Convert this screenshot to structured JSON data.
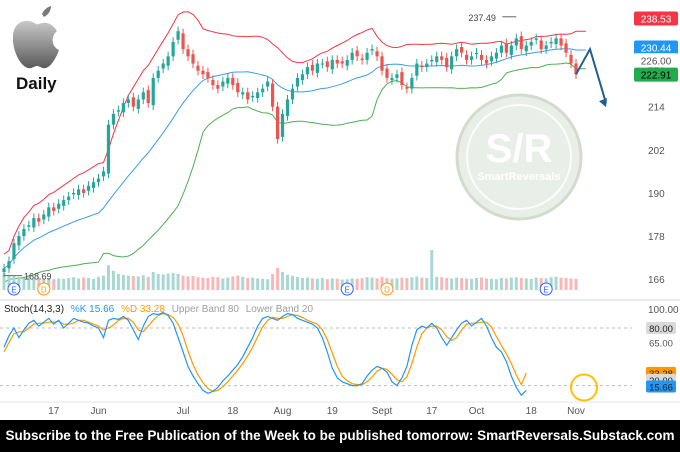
{
  "ticker_label": "Daily",
  "footer_text": "Subscribe to the Free Publication of the Week to be published tomorrow: SmartReversals.Substack.com",
  "watermark": {
    "big": "S/R",
    "small": "SmartReversals"
  },
  "colors": {
    "up": "#26a69a",
    "down": "#ef5350",
    "upper_band": "#f23645",
    "mid_band": "#3a9fe8",
    "lower_band": "#4caf50",
    "k_line": "#2196f3",
    "d_line": "#ff9800",
    "arrow": "#1f5f8f",
    "circle": "#ffc107"
  },
  "stoch_legend": {
    "name": "Stoch(14,3,3)",
    "k": "%K 15.66",
    "d": "%D 33.28",
    "ub": "Upper Band 80",
    "lb": "Lower Band 20"
  },
  "annotations": {
    "high": "237.49",
    "low": "168.69"
  },
  "price_tags": [
    {
      "text": "238.53",
      "bg": "#f23645",
      "fg": "#ffffff",
      "y": 238.53
    },
    {
      "text": "230.44",
      "bg": "#2196f3",
      "fg": "#ffffff",
      "y": 230.44
    },
    {
      "text": "226.00",
      "bg": "#ffffff",
      "fg": "#555555",
      "y": 226.9
    },
    {
      "text": "222.91",
      "bg": "#22ab4a",
      "fg": "#000000",
      "y": 222.91
    }
  ],
  "stoch_tags": [
    {
      "text": "80.00",
      "bg": "#d9d9d9",
      "fg": "#222222",
      "y": 80
    },
    {
      "text": "65.00",
      "bg": "#ffffff",
      "fg": "#555555",
      "y": 65
    },
    {
      "text": "33.28",
      "bg": "#ff9800",
      "fg": "#222222",
      "y": 33.28
    },
    {
      "text": "20.00",
      "bg": "#d9d9d9",
      "fg": "#222222",
      "y": 26
    },
    {
      "text": "15.66",
      "bg": "#2196f3",
      "fg": "#222222",
      "y": 19
    }
  ],
  "chart_data": {
    "type": "candlestick",
    "price_axis": {
      "ylim": [
        163,
        242
      ],
      "ticks": [
        166,
        178,
        190,
        202,
        214,
        226
      ]
    },
    "stoch_axis": {
      "ylim": [
        5,
        105
      ],
      "ticks": [
        100
      ]
    },
    "x_axis": {
      "ticks": [
        {
          "label": "17",
          "i": 10
        },
        {
          "label": "Jun",
          "i": 19
        },
        {
          "label": "Jul",
          "i": 36
        },
        {
          "label": "18",
          "i": 46
        },
        {
          "label": "Aug",
          "i": 56
        },
        {
          "label": "19",
          "i": 66
        },
        {
          "label": "Sept",
          "i": 76
        },
        {
          "label": "17",
          "i": 86
        },
        {
          "label": "Oct",
          "i": 95
        },
        {
          "label": "18",
          "i": 106
        },
        {
          "label": "Nov",
          "i": 115
        }
      ]
    },
    "closes": [
      169,
      171,
      176,
      178,
      180,
      181,
      183,
      182,
      184,
      186,
      185,
      187,
      188,
      189,
      190,
      191,
      190,
      192,
      193,
      194,
      196,
      209,
      212,
      213,
      215,
      216,
      214,
      216,
      218,
      215,
      222,
      224,
      226,
      228,
      232,
      235,
      230,
      228,
      226,
      224,
      223,
      222,
      220,
      219,
      221,
      222,
      220,
      218,
      218,
      216,
      217,
      218,
      219,
      221,
      214,
      205,
      212,
      216,
      219,
      222,
      223,
      225,
      224,
      226,
      226,
      225,
      227,
      226,
      226,
      227,
      229,
      228,
      227,
      229,
      230,
      228,
      224,
      222,
      222,
      223,
      220,
      219,
      222,
      226,
      225,
      226,
      227,
      228,
      227,
      225,
      228,
      230,
      229,
      227,
      228,
      229,
      227,
      226,
      228,
      229,
      231,
      229,
      231,
      233,
      230,
      231,
      232,
      233,
      230,
      231,
      232,
      233,
      231,
      229,
      226,
      223
    ],
    "volumes": [
      42,
      38,
      35,
      33,
      30,
      32,
      29,
      31,
      28,
      30,
      27,
      29,
      28,
      30,
      32,
      29,
      31,
      30,
      28,
      33,
      36,
      62,
      48,
      40,
      38,
      36,
      35,
      34,
      37,
      33,
      45,
      40,
      39,
      41,
      43,
      40,
      36,
      34,
      35,
      32,
      31,
      30,
      33,
      32,
      29,
      31,
      34,
      36,
      33,
      30,
      31,
      29,
      28,
      27,
      40,
      55,
      45,
      38,
      35,
      33,
      30,
      31,
      29,
      28,
      30,
      27,
      29,
      28,
      26,
      27,
      29,
      28,
      30,
      32,
      31,
      29,
      33,
      30,
      28,
      29,
      31,
      30,
      32,
      34,
      31,
      30,
      100,
      33,
      32,
      30,
      29,
      31,
      30,
      29,
      28,
      30,
      31,
      29,
      28,
      27,
      30,
      29,
      31,
      32,
      30,
      29,
      28,
      31,
      30,
      29,
      32,
      33,
      31,
      30,
      29,
      28
    ],
    "stoch_k": [
      60,
      72,
      80,
      70,
      78,
      85,
      88,
      82,
      86,
      90,
      84,
      88,
      80,
      85,
      90,
      88,
      86,
      85,
      82,
      80,
      70,
      88,
      90,
      89,
      92,
      88,
      78,
      68,
      82,
      92,
      95,
      94,
      96,
      93,
      85,
      70,
      55,
      40,
      30,
      22,
      15,
      12,
      14,
      18,
      25,
      30,
      36,
      42,
      50,
      60,
      70,
      82,
      90,
      92,
      90,
      88,
      92,
      95,
      94,
      90,
      88,
      86,
      84,
      80,
      70,
      55,
      38,
      28,
      24,
      22,
      20,
      20,
      22,
      30,
      36,
      40,
      38,
      34,
      24,
      20,
      28,
      40,
      62,
      78,
      82,
      80,
      85,
      80,
      70,
      62,
      70,
      78,
      85,
      88,
      82,
      86,
      90,
      82,
      70,
      60,
      55,
      45,
      30,
      18,
      10,
      15
    ],
    "stoch_d": [
      55,
      65,
      74,
      76,
      76,
      80,
      84,
      85,
      85,
      86,
      86,
      87,
      84,
      84,
      85,
      88,
      88,
      86,
      84,
      82,
      78,
      80,
      83,
      88,
      90,
      90,
      86,
      78,
      76,
      82,
      88,
      93,
      95,
      94,
      91,
      84,
      72,
      56,
      42,
      31,
      23,
      17,
      14,
      15,
      19,
      24,
      30,
      36,
      43,
      51,
      60,
      71,
      81,
      88,
      91,
      90,
      90,
      92,
      94,
      93,
      91,
      88,
      86,
      84,
      78,
      68,
      54,
      40,
      30,
      25,
      22,
      21,
      21,
      24,
      29,
      35,
      38,
      37,
      32,
      26,
      24,
      29,
      43,
      60,
      74,
      80,
      82,
      82,
      78,
      71,
      67,
      70,
      78,
      84,
      85,
      85,
      86,
      86,
      81,
      71,
      62,
      53,
      43,
      31,
      21,
      33
    ]
  }
}
